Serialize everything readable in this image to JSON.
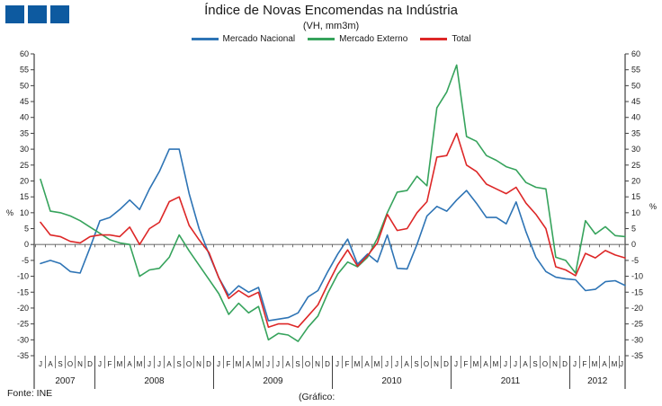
{
  "logo": {
    "color": "#0D5AA0",
    "squares": 3
  },
  "header": {
    "title": "Índice de Novas Encomendas na Indústria",
    "subtitle": "(VH, mm3m)"
  },
  "footer": {
    "source": "Fonte: INE",
    "caption": "(Gráfico:"
  },
  "axis": {
    "percent_label_left": "%",
    "percent_label_right": "%"
  },
  "chart_data": {
    "type": "line",
    "title": "Índice de Novas Encomendas na Indústria",
    "subtitle": "(VH, mm3m)",
    "ylabel": "%",
    "ylim": [
      -35,
      60
    ],
    "ytick_step": 5,
    "grid": false,
    "legend_position": "top",
    "years": [
      {
        "label": "2007",
        "months": [
          "J",
          "A",
          "S",
          "O",
          "N",
          "D"
        ]
      },
      {
        "label": "2008",
        "months": [
          "J",
          "F",
          "M",
          "A",
          "M",
          "J",
          "J",
          "A",
          "S",
          "O",
          "N",
          "D"
        ]
      },
      {
        "label": "2009",
        "months": [
          "J",
          "F",
          "M",
          "A",
          "M",
          "J",
          "J",
          "A",
          "S",
          "O",
          "N",
          "D"
        ]
      },
      {
        "label": "2010",
        "months": [
          "J",
          "F",
          "M",
          "A",
          "M",
          "J",
          "J",
          "A",
          "S",
          "O",
          "N",
          "D"
        ]
      },
      {
        "label": "2011",
        "months": [
          "J",
          "F",
          "M",
          "A",
          "M",
          "J",
          "J",
          "A",
          "S",
          "O",
          "N",
          "D"
        ]
      },
      {
        "label": "2012",
        "months": [
          "J",
          "F",
          "M",
          "A",
          "M",
          "J"
        ]
      }
    ],
    "series": [
      {
        "name": "Mercado Nacional",
        "color": "#2E74B5",
        "values": [
          -6,
          -5,
          -6,
          -8.5,
          -9,
          -1,
          7.5,
          8.5,
          11,
          14,
          11,
          17.5,
          23,
          30,
          30,
          16,
          5,
          -3,
          -10.5,
          -16,
          -13,
          -15,
          -13.5,
          -24,
          -23.5,
          -23,
          -21.5,
          -16.5,
          -14.5,
          -8.5,
          -3,
          1.7,
          -6.2,
          -3,
          -5.5,
          3,
          -7.5,
          -7.7,
          0,
          9,
          12,
          10.5,
          14,
          17,
          13,
          8.5,
          8.5,
          6.5,
          13.4,
          4,
          -4,
          -8.5,
          -10.3,
          -10.8,
          -11.1,
          -14.5,
          -14.1,
          -11.7,
          -11.4,
          -12.9
        ]
      },
      {
        "name": "Mercado Externo",
        "color": "#36A35C",
        "values": [
          20.5,
          10.5,
          10,
          9,
          7.5,
          5.5,
          3.5,
          1.5,
          0.5,
          0,
          -10,
          -8,
          -7.5,
          -4,
          3,
          -2,
          -6.5,
          -11,
          -15.5,
          -22,
          -18.5,
          -21.5,
          -19.5,
          -30,
          -28,
          -28.5,
          -30.5,
          -26,
          -22.5,
          -15.3,
          -9.3,
          -5.5,
          -7,
          -4,
          2,
          10,
          16.5,
          17,
          21.5,
          18.5,
          43,
          48,
          56.5,
          34,
          32.5,
          28,
          26.5,
          24.5,
          23.5,
          19.5,
          18,
          17.5,
          -4,
          -5,
          -9,
          7.5,
          3.3,
          5.6,
          2.8,
          2.5
        ]
      },
      {
        "name": "Total",
        "color": "#DD2727",
        "values": [
          7,
          3,
          2.5,
          1,
          0.5,
          2.5,
          3,
          3,
          2.5,
          5.5,
          0,
          5,
          7,
          13.5,
          15,
          6,
          1.5,
          -2.5,
          -10.5,
          -17,
          -14.5,
          -16.5,
          -15,
          -26,
          -25,
          -25,
          -26,
          -22.5,
          -19,
          -12.5,
          -6.4,
          -1.7,
          -6.8,
          -3.5,
          0.5,
          9.5,
          4.4,
          5,
          10,
          13.5,
          27.5,
          28,
          35,
          25,
          23,
          19,
          17.5,
          16,
          18,
          13,
          9.5,
          5,
          -7,
          -8,
          -9.8,
          -2.8,
          -4.2,
          -1.9,
          -3.3,
          -4.2
        ]
      }
    ]
  }
}
